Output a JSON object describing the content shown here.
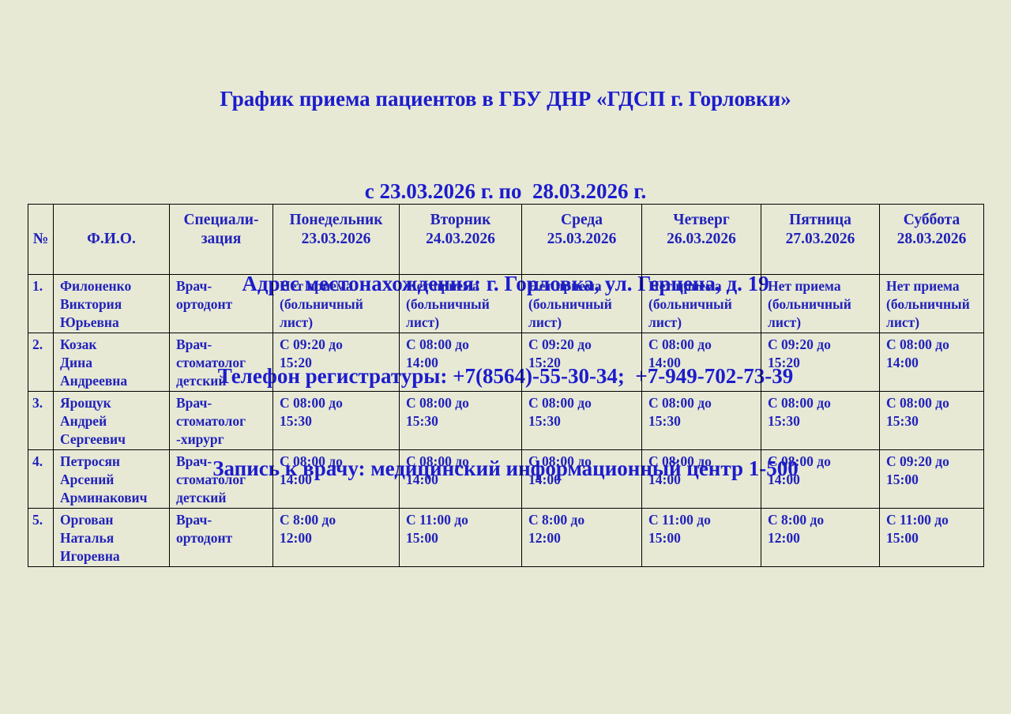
{
  "page": {
    "background_color": "#e7e9d5",
    "title_color": "#1c1ccd",
    "table_text_color": "#2222bb"
  },
  "header": {
    "lines": [
      "График приема пациентов в ГБУ ДНР «ГДСП г. Горловки»",
      "с 23.03.2026 г. по  28.03.2026 г.",
      "Адрес местонахождения: г. Горловка, ул. Герцена, д. 19",
      "Телефон регистратуры: +7(8564)-55-30-34;  +7-949-702-73-39",
      "Запись к врачу: медицинский информационный центр 1-500"
    ]
  },
  "table": {
    "columns": [
      {
        "id": "num",
        "lines": [
          "№"
        ]
      },
      {
        "id": "fio",
        "lines": [
          "Ф.И.О."
        ]
      },
      {
        "id": "spec",
        "lines": [
          "Специали-",
          "зация"
        ]
      },
      {
        "id": "monday",
        "lines": [
          "Понедельник",
          "23.03.2026"
        ]
      },
      {
        "id": "tuesday",
        "lines": [
          "Вторник",
          "24.03.2026"
        ]
      },
      {
        "id": "wednesday",
        "lines": [
          "Среда",
          "25.03.2026"
        ]
      },
      {
        "id": "thursday",
        "lines": [
          "Четверг",
          "26.03.2026"
        ]
      },
      {
        "id": "friday",
        "lines": [
          "Пятница",
          "27.03.2026"
        ]
      },
      {
        "id": "saturday",
        "lines": [
          "Суббота",
          "28.03.2026"
        ]
      }
    ],
    "rows": [
      {
        "num": "1.",
        "fio": [
          "Филоненко",
          "Виктория",
          "Юрьевна"
        ],
        "spec": [
          "Врач-",
          "ортодонт"
        ],
        "days": [
          [
            "Нет приема",
            "(больничный",
            "лист)"
          ],
          [
            "Нет приема",
            "(больничный",
            "лист)"
          ],
          [
            "Нет приема",
            "(больничный",
            "лист)"
          ],
          [
            "Нет приема",
            "(больничный",
            "лист)"
          ],
          [
            "Нет приема",
            "(больничный",
            "лист)"
          ],
          [
            "Нет приема",
            "(больничный",
            "лист)"
          ]
        ]
      },
      {
        "num": "2.",
        "fio": [
          "Козак",
          "Дина",
          "Андреевна"
        ],
        "spec": [
          "Врач-",
          "стоматолог",
          "детский"
        ],
        "days": [
          [
            "С 09:20 до",
            "15:20"
          ],
          [
            "С 08:00 до",
            "14:00"
          ],
          [
            "С 09:20 до",
            "15:20"
          ],
          [
            "С 08:00 до",
            "14:00"
          ],
          [
            "С 09:20 до",
            "15:20"
          ],
          [
            "С 08:00 до",
            "14:00"
          ]
        ]
      },
      {
        "num": "3.",
        "fio": [
          "Ярощук",
          "Андрей",
          "Сергеевич"
        ],
        "spec": [
          "Врач-",
          "стоматолог",
          "-хирург"
        ],
        "days": [
          [
            "С 08:00 до",
            "15:30"
          ],
          [
            "С 08:00 до",
            "15:30"
          ],
          [
            "С 08:00 до",
            "15:30"
          ],
          [
            "С 08:00 до",
            "15:30"
          ],
          [
            "С 08:00 до",
            "15:30"
          ],
          [
            "С 08:00 до",
            "15:30"
          ]
        ]
      },
      {
        "num": "4.",
        "fio": [
          "Петросян",
          "Арсений",
          "Арминакович"
        ],
        "spec": [
          "Врач-",
          "стоматолог",
          "детский"
        ],
        "days": [
          [
            "С 08:00 до",
            "14:00"
          ],
          [
            "С 08:00 до",
            "14:00"
          ],
          [
            "С 08:00 до",
            "14:00"
          ],
          [
            "С 08:00 до",
            "14:00"
          ],
          [
            "С 08:00 до",
            "14:00"
          ],
          [
            "С 09:20 до",
            "15:00"
          ]
        ]
      },
      {
        "num": "5.",
        "fio": [
          "Оргован",
          "Наталья",
          "Игоревна"
        ],
        "spec": [
          "Врач-",
          "ортодонт"
        ],
        "days": [
          [
            "С 8:00 до",
            "12:00"
          ],
          [
            "С 11:00 до",
            "15:00"
          ],
          [
            "С 8:00 до",
            "12:00"
          ],
          [
            "С 11:00 до",
            "15:00"
          ],
          [
            "С 8:00 до",
            "12:00"
          ],
          [
            "С 11:00 до",
            "15:00"
          ]
        ]
      }
    ]
  }
}
